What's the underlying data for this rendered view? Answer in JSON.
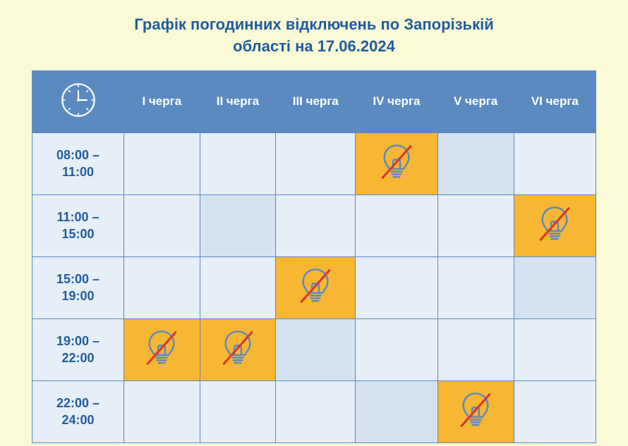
{
  "title_line1": "Графік погодинних відключень по Запорізькій",
  "title_line2": "області на 17.06.2024",
  "colors": {
    "page_bg": "#fbfad6",
    "header_bg": "#5a8ac0",
    "header_text": "#ffffff",
    "border": "#5a8ac0",
    "cell_bg": "#e6eef8",
    "cell_alt_bg": "#d4e2f2",
    "outage_bg": "#f7b733",
    "title_text": "#1f5c9e",
    "time_text": "#1f5c9e",
    "bulb_stroke": "#5a8ac0",
    "strike_color": "#d83a2b"
  },
  "columns": [
    "І черга",
    "ІІ черга",
    "ІІІ черга",
    "IV черга",
    "V черга",
    "VI черга"
  ],
  "rows": [
    {
      "time": "08:00 –\n11:00",
      "outage": [
        false,
        false,
        false,
        true,
        false,
        false
      ],
      "alt": [
        false,
        false,
        false,
        false,
        true,
        false
      ]
    },
    {
      "time": "11:00 –\n15:00",
      "outage": [
        false,
        false,
        false,
        false,
        false,
        true
      ],
      "alt": [
        false,
        true,
        false,
        false,
        false,
        false
      ]
    },
    {
      "time": "15:00 –\n19:00",
      "outage": [
        false,
        false,
        true,
        false,
        false,
        false
      ],
      "alt": [
        false,
        false,
        false,
        false,
        false,
        true
      ]
    },
    {
      "time": "19:00 –\n22:00",
      "outage": [
        true,
        true,
        false,
        false,
        false,
        false
      ],
      "alt": [
        false,
        false,
        true,
        false,
        false,
        false
      ]
    },
    {
      "time": "22:00 –\n24:00",
      "outage": [
        false,
        false,
        false,
        false,
        true,
        false
      ],
      "alt": [
        false,
        false,
        false,
        true,
        false,
        false
      ]
    }
  ]
}
